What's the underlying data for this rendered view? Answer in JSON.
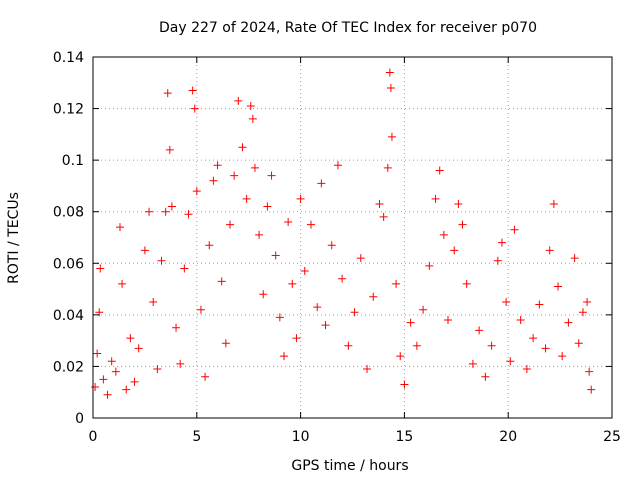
{
  "chart_data": {
    "type": "scatter",
    "title": "Day 227 of 2024, Rate Of TEC Index for receiver p070",
    "xlabel": "GPS time / hours",
    "ylabel": "ROTI / TECUs",
    "xlim": [
      0,
      25
    ],
    "ylim": [
      0,
      0.14
    ],
    "x_ticks": [
      0,
      5,
      10,
      15,
      20,
      25
    ],
    "x_tick_labels": [
      "0",
      "5",
      "10",
      "15",
      "20",
      "25"
    ],
    "y_ticks": [
      0,
      0.02,
      0.04,
      0.06,
      0.08,
      0.1,
      0.12,
      0.14
    ],
    "y_tick_labels": [
      "0",
      "0.02",
      "0.04",
      "0.06",
      "0.08",
      "0.1",
      "0.12",
      "0.14"
    ],
    "grid": true,
    "marker": "+",
    "color": "#ff0000",
    "series": [
      {
        "name": "",
        "points": [
          [
            0.1,
            0.012
          ],
          [
            0.2,
            0.025
          ],
          [
            0.3,
            0.041
          ],
          [
            0.35,
            0.058
          ],
          [
            0.5,
            0.015
          ],
          [
            0.7,
            0.009
          ],
          [
            0.9,
            0.022
          ],
          [
            1.1,
            0.018
          ],
          [
            1.3,
            0.074
          ],
          [
            1.4,
            0.052
          ],
          [
            1.6,
            0.011
          ],
          [
            1.8,
            0.031
          ],
          [
            2.0,
            0.014
          ],
          [
            2.2,
            0.027
          ],
          [
            2.5,
            0.065
          ],
          [
            2.7,
            0.08
          ],
          [
            2.9,
            0.045
          ],
          [
            3.1,
            0.019
          ],
          [
            3.3,
            0.061
          ],
          [
            3.5,
            0.08
          ],
          [
            3.6,
            0.126
          ],
          [
            3.7,
            0.104
          ],
          [
            3.8,
            0.082
          ],
          [
            4.0,
            0.035
          ],
          [
            4.2,
            0.021
          ],
          [
            4.4,
            0.058
          ],
          [
            4.6,
            0.079
          ],
          [
            4.8,
            0.127
          ],
          [
            4.9,
            0.12
          ],
          [
            5.0,
            0.088
          ],
          [
            5.2,
            0.042
          ],
          [
            5.4,
            0.016
          ],
          [
            5.6,
            0.067
          ],
          [
            5.8,
            0.092
          ],
          [
            6.0,
            0.098
          ],
          [
            6.2,
            0.053
          ],
          [
            6.4,
            0.029
          ],
          [
            6.6,
            0.075
          ],
          [
            6.8,
            0.094
          ],
          [
            7.0,
            0.123
          ],
          [
            7.2,
            0.105
          ],
          [
            7.4,
            0.085
          ],
          [
            7.6,
            0.121
          ],
          [
            7.7,
            0.116
          ],
          [
            7.8,
            0.097
          ],
          [
            8.0,
            0.071
          ],
          [
            8.2,
            0.048
          ],
          [
            8.4,
            0.082
          ],
          [
            8.6,
            0.094
          ],
          [
            8.8,
            0.063
          ],
          [
            9.0,
            0.039
          ],
          [
            9.2,
            0.024
          ],
          [
            9.4,
            0.076
          ],
          [
            9.6,
            0.052
          ],
          [
            9.8,
            0.031
          ],
          [
            10.0,
            0.085
          ],
          [
            10.2,
            0.057
          ],
          [
            10.5,
            0.075
          ],
          [
            10.8,
            0.043
          ],
          [
            11.0,
            0.091
          ],
          [
            11.2,
            0.036
          ],
          [
            11.5,
            0.067
          ],
          [
            11.8,
            0.098
          ],
          [
            12.0,
            0.054
          ],
          [
            12.3,
            0.028
          ],
          [
            12.6,
            0.041
          ],
          [
            12.9,
            0.062
          ],
          [
            13.2,
            0.019
          ],
          [
            13.5,
            0.047
          ],
          [
            13.8,
            0.083
          ],
          [
            14.0,
            0.078
          ],
          [
            14.2,
            0.097
          ],
          [
            14.3,
            0.134
          ],
          [
            14.35,
            0.128
          ],
          [
            14.4,
            0.109
          ],
          [
            14.6,
            0.052
          ],
          [
            14.8,
            0.024
          ],
          [
            15.0,
            0.013
          ],
          [
            15.3,
            0.037
          ],
          [
            15.6,
            0.028
          ],
          [
            15.9,
            0.042
          ],
          [
            16.2,
            0.059
          ],
          [
            16.5,
            0.085
          ],
          [
            16.7,
            0.096
          ],
          [
            16.9,
            0.071
          ],
          [
            17.1,
            0.038
          ],
          [
            17.4,
            0.065
          ],
          [
            17.6,
            0.083
          ],
          [
            17.8,
            0.075
          ],
          [
            18.0,
            0.052
          ],
          [
            18.3,
            0.021
          ],
          [
            18.6,
            0.034
          ],
          [
            18.9,
            0.016
          ],
          [
            19.2,
            0.028
          ],
          [
            19.5,
            0.061
          ],
          [
            19.7,
            0.068
          ],
          [
            19.9,
            0.045
          ],
          [
            20.1,
            0.022
          ],
          [
            20.3,
            0.073
          ],
          [
            20.6,
            0.038
          ],
          [
            20.9,
            0.019
          ],
          [
            21.2,
            0.031
          ],
          [
            21.5,
            0.044
          ],
          [
            21.8,
            0.027
          ],
          [
            22.0,
            0.065
          ],
          [
            22.2,
            0.083
          ],
          [
            22.4,
            0.051
          ],
          [
            22.6,
            0.024
          ],
          [
            22.9,
            0.037
          ],
          [
            23.2,
            0.062
          ],
          [
            23.4,
            0.029
          ],
          [
            23.6,
            0.041
          ],
          [
            23.8,
            0.045
          ],
          [
            23.9,
            0.018
          ],
          [
            24.0,
            0.011
          ]
        ]
      }
    ]
  }
}
